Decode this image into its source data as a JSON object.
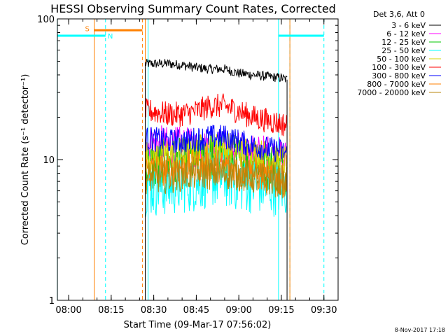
{
  "chart_data": {
    "type": "line",
    "title": "HESSI Observing Summary Count Rates, Corrected",
    "xlabel": "Start Time (09-Mar-17 07:56:02)",
    "ylabel": "Corrected Count Rate (s⁻¹ detector⁻¹)",
    "y_scale": "log",
    "ylim": [
      1,
      100
    ],
    "xlim": [
      "07:56:02",
      "09:35:00"
    ],
    "x_ticks": [
      "08:00",
      "08:15",
      "08:30",
      "08:45",
      "09:00",
      "09:15",
      "09:30"
    ],
    "y_ticks": [
      "1",
      "10",
      "100"
    ],
    "timestamp": "8-Nov-2017 17:18",
    "legend": {
      "position": "top-right, outside plot",
      "header": "Det 3,6, Att 0"
    },
    "series": [
      {
        "name": "3 - 6 keV",
        "color": "#000000",
        "x": [
          "08:27",
          "08:30",
          "08:35",
          "08:40",
          "08:45",
          "08:50",
          "08:55",
          "09:00",
          "09:05",
          "09:10",
          "09:15",
          "09:17"
        ],
        "values": [
          48,
          48,
          48,
          47,
          45,
          44,
          44,
          41,
          40,
          39,
          38,
          37
        ]
      },
      {
        "name": "6 - 12 keV",
        "color": "#ff00ff",
        "x": [
          "08:27",
          "08:30",
          "08:35",
          "08:40",
          "08:45",
          "08:50",
          "08:55",
          "09:00",
          "09:05",
          "09:10",
          "09:15",
          "09:17"
        ],
        "values": [
          13,
          13,
          12.5,
          12.5,
          12,
          12.5,
          12,
          11.5,
          11,
          11,
          10.5,
          10
        ]
      },
      {
        "name": "12 - 25 keV",
        "color": "#00c800",
        "x": [
          "08:27",
          "08:30",
          "08:35",
          "08:40",
          "08:45",
          "08:50",
          "08:55",
          "09:00",
          "09:05",
          "09:10",
          "09:15",
          "09:17"
        ],
        "values": [
          9,
          9,
          9.5,
          9.5,
          10,
          10.5,
          10.5,
          10,
          9.5,
          9,
          8.5,
          8
        ]
      },
      {
        "name": "25 - 50 keV",
        "color": "#00ffff",
        "x": [
          "08:27",
          "08:30",
          "08:35",
          "08:40",
          "08:45",
          "08:50",
          "08:55",
          "09:00",
          "09:05",
          "09:10",
          "09:15",
          "09:17"
        ],
        "values": [
          6.5,
          6.5,
          6.5,
          6.8,
          7,
          7.5,
          7.5,
          7,
          6.8,
          6.5,
          6.5,
          6.3
        ]
      },
      {
        "name": "50 - 100 keV",
        "color": "#d4d400",
        "x": [
          "08:27",
          "08:30",
          "08:35",
          "08:40",
          "08:45",
          "08:50",
          "08:55",
          "09:00",
          "09:05",
          "09:10",
          "09:15",
          "09:17"
        ],
        "values": [
          10.5,
          10.5,
          11,
          11,
          11.5,
          12,
          12,
          11.5,
          11,
          10.5,
          10,
          9.5
        ]
      },
      {
        "name": "100 - 300 keV",
        "color": "#ff0000",
        "x": [
          "08:27",
          "08:30",
          "08:35",
          "08:40",
          "08:45",
          "08:50",
          "08:55",
          "09:00",
          "09:05",
          "09:10",
          "09:15",
          "09:17"
        ],
        "values": [
          22,
          22,
          21,
          21,
          22,
          24,
          24,
          22,
          20,
          19,
          18,
          17.5
        ]
      },
      {
        "name": "300 - 800 keV",
        "color": "#0000ff",
        "x": [
          "08:27",
          "08:30",
          "08:35",
          "08:40",
          "08:45",
          "08:50",
          "08:55",
          "09:00",
          "09:05",
          "09:10",
          "09:15",
          "09:17"
        ],
        "values": [
          14,
          14,
          13.5,
          13.5,
          14,
          14.5,
          14.5,
          13.5,
          12.5,
          12,
          11.5,
          11
        ]
      },
      {
        "name": "800 - 7000 keV",
        "color": "#ff8000",
        "x": [
          "08:27",
          "08:30",
          "08:35",
          "08:40",
          "08:45",
          "08:50",
          "08:55",
          "09:00",
          "09:05",
          "09:10",
          "09:15",
          "09:17"
        ],
        "values": [
          8.5,
          8.5,
          8.5,
          8.8,
          9,
          9.2,
          9,
          8.5,
          8,
          7.5,
          7.2,
          7
        ]
      },
      {
        "name": "7000 - 20000 keV",
        "color": "#b8860b",
        "x": [
          "08:27",
          "08:30",
          "08:35",
          "08:40",
          "08:45",
          "08:50",
          "08:55",
          "09:00",
          "09:05",
          "09:10",
          "09:15",
          "09:17"
        ],
        "values": [
          7.5,
          7.5,
          7.5,
          7.8,
          8,
          8,
          8,
          7.8,
          7.5,
          7.2,
          7,
          6.8
        ]
      }
    ],
    "annotations": [
      {
        "label": "S",
        "color": "#ff8000",
        "start": "08:09",
        "end": "08:26",
        "level": 83
      },
      {
        "label": "N",
        "color": "#00ffff",
        "start": "07:56",
        "end": "08:13",
        "level": 76
      },
      {
        "label": "",
        "color": "#00ffff",
        "start": "09:14",
        "end": "09:30",
        "level": 76
      }
    ],
    "vlines": [
      {
        "time": "07:56",
        "color": "#00ffff",
        "style": "solid"
      },
      {
        "time": "08:09",
        "color": "#ff8000",
        "style": "solid"
      },
      {
        "time": "08:13",
        "color": "#00ffff",
        "style": "dashed"
      },
      {
        "time": "08:26",
        "color": "#ff8000",
        "style": "dashed"
      },
      {
        "time": "08:27",
        "color": "#ff8000",
        "style": "solid"
      },
      {
        "time": "08:28",
        "color": "#00ffff",
        "style": "solid"
      },
      {
        "time": "09:14",
        "color": "#00ffff",
        "style": "solid"
      },
      {
        "time": "09:18",
        "color": "#00ffff",
        "style": "dashed"
      },
      {
        "time": "09:18",
        "color": "#ff8000",
        "style": "solid"
      },
      {
        "time": "09:30",
        "color": "#00ffff",
        "style": "dashed"
      }
    ]
  }
}
